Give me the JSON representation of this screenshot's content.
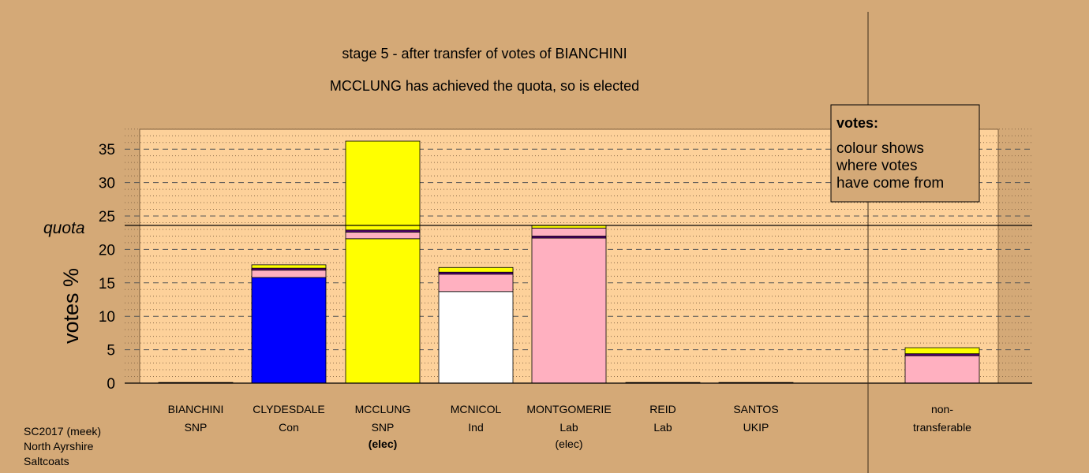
{
  "header": {
    "title": "stage 5 - after transfer of votes of BIANCHINI",
    "subtitle": "MCCLUNG has achieved the quota, so is elected"
  },
  "legend": {
    "title": "votes:",
    "lines": [
      "colour shows",
      "where votes",
      "have come from"
    ]
  },
  "footer": {
    "lines": [
      "SC2017 (meek)",
      "North Ayrshire",
      "Saltcoats"
    ]
  },
  "colors": {
    "background": "#d4a977",
    "plot_area": "#fdd19a",
    "grid_dash": "#555555",
    "grid_dot": "#8a6a48",
    "SNP": "#ffff00",
    "Con": "#0000ff",
    "Ind": "#ffffff",
    "Lab": "#ffb0c0",
    "UKIP": "#5a007a"
  },
  "chart_data": {
    "type": "bar",
    "stacked": true,
    "title": "stage 5 - after transfer of votes of BIANCHINI",
    "subtitle": "MCCLUNG has achieved the quota, so is elected",
    "ylabel": "votes %",
    "xlabel": "",
    "ylim": [
      0,
      38
    ],
    "yticks": [
      0,
      5,
      10,
      15,
      20,
      25,
      30,
      35
    ],
    "grid": true,
    "quota": {
      "label": "quota",
      "value": 23.6
    },
    "legend_position": "top-right",
    "categories": [
      {
        "name": "BIANCHINI",
        "party": "SNP",
        "note": ""
      },
      {
        "name": "CLYDESDALE",
        "party": "Con",
        "note": ""
      },
      {
        "name": "MCCLUNG",
        "party": "SNP",
        "note": "(elec)",
        "note_bold": true
      },
      {
        "name": "MCNICOL",
        "party": "Ind",
        "note": ""
      },
      {
        "name": "MONTGOMERIE",
        "party": "Lab",
        "note": "(elec)",
        "note_bold": false
      },
      {
        "name": "REID",
        "party": "Lab",
        "note": ""
      },
      {
        "name": "SANTOS",
        "party": "UKIP",
        "note": ""
      },
      {
        "name": "non-",
        "party": "transferable",
        "note": "",
        "separated": true
      }
    ],
    "bars": [
      [
        {
          "source": "SNP",
          "value": 0.1
        }
      ],
      [
        {
          "source": "Con",
          "value": 15.8
        },
        {
          "source": "Lab",
          "value": 1.1
        },
        {
          "source": "UKIP",
          "value": 0.3
        },
        {
          "source": "SNP",
          "value": 0.5
        }
      ],
      [
        {
          "source": "SNP",
          "value": 21.6
        },
        {
          "source": "Lab",
          "value": 1.0
        },
        {
          "source": "UKIP",
          "value": 0.3
        },
        {
          "source": "SNP",
          "value": 13.3
        }
      ],
      [
        {
          "source": "Ind",
          "value": 13.7
        },
        {
          "source": "Lab",
          "value": 2.6
        },
        {
          "source": "UKIP",
          "value": 0.3
        },
        {
          "source": "SNP",
          "value": 0.7
        }
      ],
      [
        {
          "source": "Lab",
          "value": 21.7
        },
        {
          "source": "UKIP",
          "value": 0.3
        },
        {
          "source": "Lab",
          "value": 1.2
        },
        {
          "source": "SNP",
          "value": 0.4
        }
      ],
      [
        {
          "source": "Lab",
          "value": 0.1
        }
      ],
      [
        {
          "source": "UKIP",
          "value": 0.1
        }
      ],
      [
        {
          "source": "Lab",
          "value": 4.1
        },
        {
          "source": "UKIP",
          "value": 0.3
        },
        {
          "source": "SNP",
          "value": 0.9
        }
      ]
    ]
  }
}
